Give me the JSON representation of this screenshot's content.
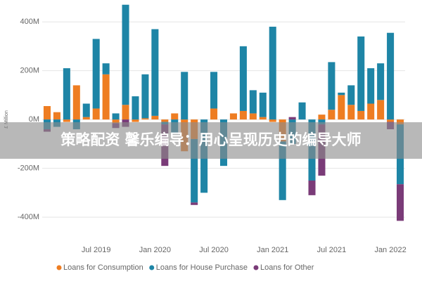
{
  "chart_data": {
    "type": "bar",
    "stacked": true,
    "y_label": "£ Million",
    "overlay_text": "策略配资 馨乐编导：用心呈现历史的编导大师",
    "categories": [
      null,
      null,
      null,
      null,
      null,
      "Jul 2019",
      null,
      null,
      null,
      null,
      null,
      "Jan 2020",
      null,
      null,
      null,
      null,
      null,
      "Jul 2020",
      null,
      null,
      null,
      null,
      null,
      "Jan 2021",
      null,
      null,
      null,
      null,
      null,
      "Jul 2021",
      null,
      null,
      null,
      null,
      null,
      "Jan 2022",
      null
    ],
    "series": [
      {
        "name": "Loans for Consumption",
        "color": "#ee7d22",
        "values": [
          55,
          30,
          -10,
          140,
          10,
          45,
          185,
          -15,
          60,
          -10,
          5,
          15,
          -10,
          25,
          -130,
          -80,
          0,
          45,
          0,
          25,
          35,
          25,
          10,
          -10,
          -90,
          0,
          0,
          0,
          20,
          40,
          100,
          60,
          35,
          65,
          80,
          -10,
          -20
        ]
      },
      {
        "name": "Loans for House Purchase",
        "color": "#1e85a6",
        "values": [
          -40,
          -30,
          210,
          -40,
          55,
          285,
          45,
          25,
          410,
          95,
          180,
          355,
          -10,
          -60,
          195,
          -260,
          -300,
          150,
          -190,
          0,
          265,
          95,
          100,
          380,
          -240,
          -100,
          70,
          -250,
          -20,
          195,
          10,
          80,
          305,
          145,
          150,
          355,
          -245
        ]
      },
      {
        "name": "Loans for Other",
        "color": "#7a3b78",
        "values": [
          -10,
          0,
          0,
          0,
          0,
          0,
          0,
          -20,
          -30,
          0,
          0,
          0,
          -170,
          0,
          0,
          -10,
          0,
          0,
          0,
          0,
          0,
          0,
          0,
          0,
          0,
          10,
          0,
          -60,
          -210,
          0,
          0,
          0,
          0,
          0,
          0,
          -30,
          -150
        ]
      }
    ],
    "ylim": [
      -460,
      475
    ],
    "yticks": [
      {
        "value": -400,
        "label": "-400M"
      },
      {
        "value": -200,
        "label": "-200M"
      },
      {
        "value": 0,
        "label": "0M"
      },
      {
        "value": 200,
        "label": "200M"
      },
      {
        "value": 400,
        "label": "400M"
      }
    ],
    "grid": true
  }
}
